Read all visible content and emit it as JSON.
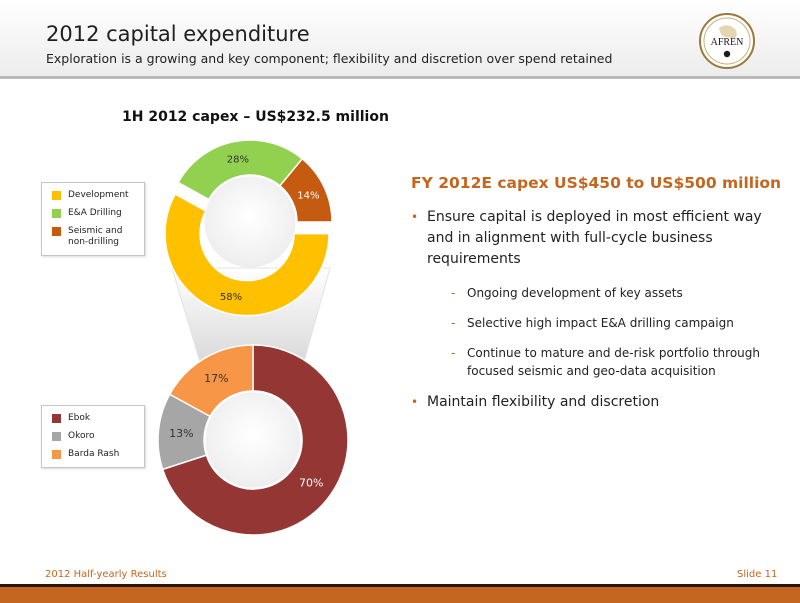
{
  "header": {
    "title": "2012 capital expenditure",
    "subtitle": "Exploration is a growing and key component; flexibility and discretion over spend retained",
    "logo_text": "AFREN"
  },
  "chart_data": [
    {
      "type": "pie",
      "title": "1H 2012 capex  – US$232.5 million",
      "labels": [
        "Development",
        "E&A Drilling",
        "Seismic and non-drilling"
      ],
      "values": [
        58,
        28,
        14
      ],
      "value_labels": [
        "58%",
        "28%",
        "14%"
      ],
      "colors": [
        "#ffc000",
        "#92d050",
        "#c55a11"
      ],
      "legend": "left"
    },
    {
      "type": "pie",
      "title": "",
      "labels": [
        "Ebok",
        "Okoro",
        "Barda Rash"
      ],
      "values": [
        70,
        13,
        17
      ],
      "value_labels": [
        "70%",
        "13%",
        "17%"
      ],
      "colors": [
        "#943634",
        "#a6a6a6",
        "#f79646"
      ],
      "legend": "left"
    }
  ],
  "content": {
    "heading": "FY 2012E capex US$450 to US$500 million",
    "bullet1": "Ensure capital is deployed in most efficient way and in alignment with full-cycle business requirements",
    "sub1": "Ongoing development of key assets",
    "sub2": "Selective high impact E&A drilling campaign",
    "sub3": "Continue to mature and de-risk portfolio through focused seismic and geo-data acquisition",
    "bullet2": "Maintain flexibility and discretion"
  },
  "footer": {
    "left": "2012 Half-yearly Results",
    "right": "Slide 11"
  },
  "colors": {
    "accent": "#c4661f"
  }
}
